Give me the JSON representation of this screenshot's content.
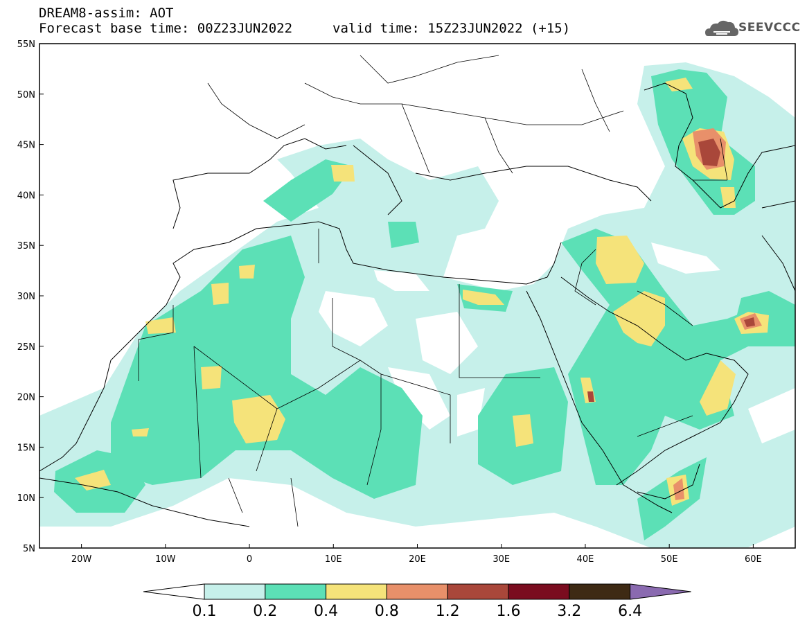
{
  "header": {
    "title": "DREAM8-assim: AOT",
    "base_time": "Forecast base time: 00Z23JUN2022",
    "valid_time": "valid time: 15Z23JUN2022 (+15)"
  },
  "logo": {
    "name": "cloud-logo-icon",
    "text": "SEEVCCC"
  },
  "map": {
    "lon_range": [
      -25,
      65
    ],
    "lat_range": [
      5,
      55
    ],
    "lat_ticks": [
      "55N",
      "50N",
      "45N",
      "40N",
      "35N",
      "30N",
      "25N",
      "20N",
      "15N",
      "10N",
      "5N"
    ],
    "lon_ticks": [
      "20W",
      "10W",
      "0",
      "10E",
      "20E",
      "30E",
      "40E",
      "50E",
      "60E"
    ]
  },
  "colorbar": {
    "labels": [
      "0.1",
      "0.2",
      "0.4",
      "0.8",
      "1.2",
      "1.6",
      "3.2",
      "6.4"
    ],
    "colors": [
      "#ffffff",
      "#c6f0ea",
      "#5ce0b6",
      "#f5e37a",
      "#e8906a",
      "#a9473a",
      "#7a0c1f",
      "#3e2a14",
      "#8a6ab0"
    ]
  }
}
